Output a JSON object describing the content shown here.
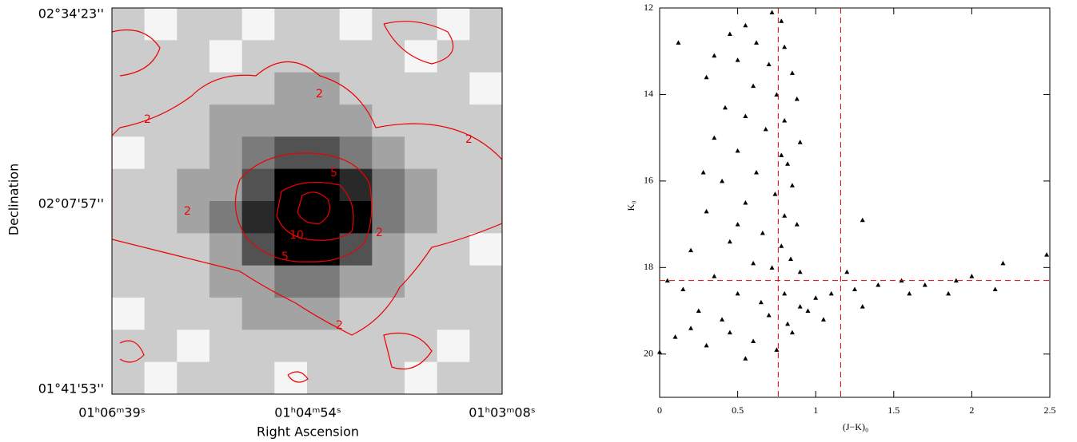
{
  "chart_data": [
    {
      "type": "heatmap",
      "x_label": "Right Ascension",
      "y_label": "Declination",
      "x_tick_labels": [
        "01ʰ06ᵐ39ˢ",
        "01ʰ04ᵐ54ˢ",
        "01ʰ03ᵐ08ˢ"
      ],
      "y_tick_labels": [
        "02°34'23''",
        "02°07'57''",
        "01°41'53''"
      ],
      "zlim": [
        0,
        6
      ],
      "contour_levels": [
        2,
        5,
        10
      ],
      "contour_color": "#e00000",
      "values": [
        [
          1,
          0,
          1,
          1,
          0,
          1,
          1,
          0,
          1,
          1,
          0,
          1
        ],
        [
          1,
          1,
          1,
          0,
          1,
          1,
          1,
          1,
          1,
          0,
          1,
          1
        ],
        [
          1,
          1,
          1,
          1,
          1,
          2,
          2,
          1,
          1,
          1,
          1,
          0
        ],
        [
          1,
          1,
          1,
          2,
          2,
          2,
          2,
          2,
          1,
          1,
          1,
          1
        ],
        [
          0,
          1,
          1,
          2,
          3,
          4,
          4,
          3,
          2,
          1,
          1,
          1
        ],
        [
          1,
          1,
          2,
          2,
          4,
          6,
          6,
          5,
          3,
          2,
          1,
          1
        ],
        [
          1,
          1,
          2,
          3,
          5,
          7,
          7,
          6,
          3,
          2,
          1,
          1
        ],
        [
          1,
          1,
          1,
          2,
          4,
          6,
          6,
          4,
          2,
          1,
          1,
          0
        ],
        [
          1,
          1,
          1,
          2,
          2,
          3,
          3,
          2,
          2,
          1,
          1,
          1
        ],
        [
          0,
          1,
          1,
          1,
          2,
          2,
          2,
          1,
          1,
          1,
          1,
          1
        ],
        [
          1,
          1,
          0,
          1,
          1,
          1,
          1,
          1,
          1,
          1,
          0,
          1
        ],
        [
          1,
          0,
          1,
          1,
          1,
          0,
          1,
          1,
          1,
          0,
          1,
          1
        ]
      ]
    },
    {
      "type": "scatter",
      "x_label": "(J−K)₀",
      "y_label": "K₀",
      "color": "#000000",
      "xlim": [
        0,
        2.5
      ],
      "ylim": [
        21,
        12
      ],
      "xticks": [
        0,
        0.5,
        1,
        1.5,
        2,
        2.5
      ],
      "yticks": [
        12,
        14,
        16,
        18,
        20
      ],
      "vlines": [
        0.76,
        1.16
      ],
      "hlines": [
        18.3
      ],
      "line_color": "#e00000",
      "x": [
        0.72,
        0.78,
        0.55,
        0.45,
        0.62,
        0.8,
        0.35,
        0.5,
        0.7,
        0.85,
        0.3,
        0.6,
        0.75,
        0.88,
        0.42,
        0.55,
        0.8,
        0.68,
        0.35,
        0.9,
        0.5,
        0.78,
        0.82,
        0.62,
        0.4,
        0.85,
        0.74,
        0.55,
        0.3,
        0.8,
        0.88,
        0.66,
        0.45,
        0.78,
        0.2,
        0.84,
        0.6,
        0.72,
        0.9,
        0.35,
        0.05,
        0.15,
        0.5,
        0.8,
        1.0,
        1.1,
        1.25,
        1.4,
        1.55,
        1.7,
        1.85,
        2.0,
        2.2,
        2.48,
        1.3,
        0.95,
        0.7,
        0.4,
        0.2,
        0.1,
        0.3,
        0.6,
        0.85,
        1.05,
        0.0,
        0.55,
        0.25,
        0.65,
        0.9,
        1.2,
        1.3,
        0.12,
        0.28,
        0.45,
        0.75,
        1.6,
        1.9,
        2.15,
        0.82,
        0.5
      ],
      "y": [
        12.1,
        12.3,
        12.4,
        12.6,
        12.8,
        12.9,
        13.1,
        13.2,
        13.3,
        13.5,
        13.6,
        13.8,
        14.0,
        14.1,
        14.3,
        14.5,
        14.6,
        14.8,
        15.0,
        15.1,
        15.3,
        15.4,
        15.6,
        15.8,
        16.0,
        16.1,
        16.3,
        16.5,
        16.7,
        16.8,
        17.0,
        17.2,
        17.4,
        17.5,
        17.6,
        17.8,
        17.9,
        18.0,
        18.1,
        18.2,
        18.3,
        18.5,
        18.6,
        18.6,
        18.7,
        18.6,
        18.5,
        18.4,
        18.3,
        18.4,
        18.6,
        18.2,
        17.9,
        17.7,
        18.9,
        19.0,
        19.1,
        19.2,
        19.4,
        19.6,
        19.8,
        19.7,
        19.5,
        19.2,
        19.95,
        20.1,
        19.0,
        18.8,
        18.9,
        18.1,
        16.9,
        12.8,
        15.8,
        19.5,
        19.9,
        18.6,
        18.3,
        18.5,
        19.3,
        17.0
      ]
    }
  ]
}
